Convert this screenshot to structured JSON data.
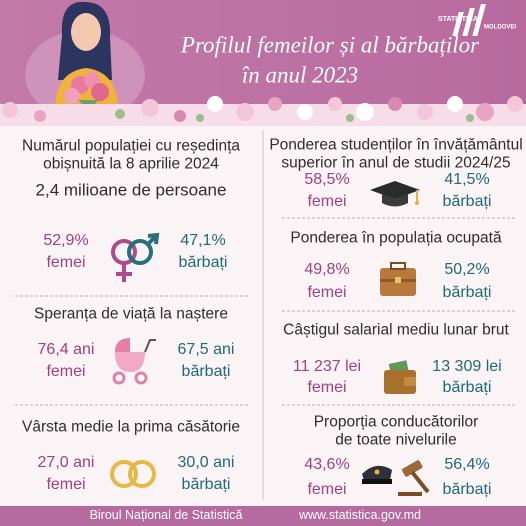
{
  "header": {
    "title": [
      "Profilul femeilor și al bărbaților",
      "în anul 2023"
    ],
    "logo": [
      "STATISTICA",
      "MOLDOVEI"
    ]
  },
  "left": [
    {
      "title": [
        "Numărul populației cu reședința",
        "obișnuită la 8 aprilie 2024"
      ],
      "subtitle": "2,4 milioane de persoane",
      "women": {
        "value": "52,9%",
        "label": "femei"
      },
      "men": {
        "value": "47,1%",
        "label": "bărbați"
      }
    },
    {
      "title": [
        "Speranța de viață la naștere"
      ],
      "women": {
        "value": "76,4 ani",
        "label": "femei"
      },
      "men": {
        "value": "67,5 ani",
        "label": "bărbați"
      }
    },
    {
      "title": [
        "Vârsta medie la prima căsătorie"
      ],
      "women": {
        "value": "27,0 ani",
        "label": "femei"
      },
      "men": {
        "value": "30,0 ani",
        "label": "bărbați"
      }
    }
  ],
  "right": [
    {
      "title": [
        "Ponderea studenților în învățământul",
        "superior în anul de studii 2024/25"
      ],
      "women": {
        "value": "58,5%",
        "label": "femei"
      },
      "men": {
        "value": "41,5%",
        "label": "bărbați"
      }
    },
    {
      "title": [
        "Ponderea în populația ocupată"
      ],
      "women": {
        "value": "49,8%",
        "label": "femei"
      },
      "men": {
        "value": "50,2%",
        "label": "bărbați"
      }
    },
    {
      "title": [
        "Câștigul salarial mediu lunar brut"
      ],
      "women": {
        "value": "11 237 lei",
        "label": "femei"
      },
      "men": {
        "value": "13 309 lei",
        "label": "bărbați"
      }
    },
    {
      "title": [
        "Proporția conducătorilor",
        "de toate nivelurile"
      ],
      "women": {
        "value": "43,6%",
        "label": "femei"
      },
      "men": {
        "value": "56,4%",
        "label": "bărbați"
      }
    }
  ],
  "footer": {
    "organization": "Biroul Național de Statistică",
    "website": "www.statistica.gov.md"
  }
}
